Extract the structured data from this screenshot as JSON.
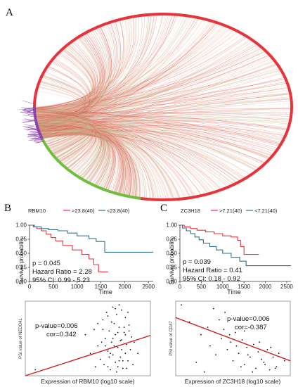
{
  "figure": {
    "panels": {
      "A": {
        "letter": "A"
      },
      "B": {
        "letter": "B",
        "km": {
          "legend_title": "RBM10",
          "legend_high": ">23.8(40)",
          "legend_low": "<23.8(40)",
          "p_text": "p = 0.045",
          "hr_text": "Hazard Ratio = 2.28",
          "ci_text": "95% CI: 0.99 - 5.23",
          "xlabel": "Time",
          "ylabel": "Survival probability"
        },
        "scatter": {
          "xlabel": "Expression of RBM10 (log10 scale)",
          "ylabel": "PSI value of NEDD4L",
          "p_text": "p-value=0.006",
          "cor_text": "cor=0.342"
        }
      },
      "C": {
        "letter": "C",
        "km": {
          "legend_title": "ZC3H18",
          "legend_high": ">7.21(40)",
          "legend_low": "<7.21(40)",
          "p_text": "p = 0.039",
          "hr_text": "Hazard Ratio = 0.41",
          "ci_text": "95% CI: 0.18 - 0.92",
          "xlabel": "Time",
          "ylabel": "Survival probability"
        },
        "scatter": {
          "xlabel": "Expression of ZC3H18 (log10 scale)",
          "ylabel": "PSI value of CD47",
          "p_text": "p-value=0.006",
          "cor_text": "cor=-0.387"
        }
      }
    },
    "colors": {
      "red": "#e8333b",
      "blue": "#2f6e93",
      "green": "#6fbf3f",
      "purple": "#8e44ad",
      "line_red": "#cc1f1f"
    }
  },
  "chart_data": [
    {
      "type": "line",
      "panel": "B",
      "xlabel": "Time",
      "ylabel": "Survival probability",
      "xlim": [
        0,
        2600
      ],
      "ylim": [
        0,
        1
      ],
      "x_ticks": [
        0,
        500,
        1000,
        1500,
        2000,
        2500
      ],
      "y_ticks": [
        0.0,
        0.25,
        0.5,
        0.75,
        1.0
      ],
      "series": [
        {
          "name": ">23.8(40)",
          "color": "#e8333b",
          "x": [
            0,
            80,
            150,
            250,
            350,
            450,
            550,
            700,
            900,
            1100,
            1250,
            1350,
            1450,
            1650
          ],
          "y": [
            1.0,
            0.97,
            0.94,
            0.9,
            0.84,
            0.78,
            0.72,
            0.64,
            0.56,
            0.48,
            0.4,
            0.3,
            0.17,
            0.17
          ]
        },
        {
          "name": "<23.8(40)",
          "color": "#2f6e93",
          "x": [
            0,
            100,
            250,
            400,
            600,
            800,
            1000,
            1250,
            1400,
            1500,
            1580,
            2600
          ],
          "y": [
            1.0,
            0.97,
            0.94,
            0.92,
            0.9,
            0.86,
            0.81,
            0.76,
            0.71,
            0.71,
            0.52,
            0.52
          ]
        }
      ]
    },
    {
      "type": "line",
      "panel": "C",
      "xlabel": "Time",
      "ylabel": "Survival probability",
      "xlim": [
        0,
        2600
      ],
      "ylim": [
        0,
        1
      ],
      "x_ticks": [
        0,
        500,
        1000,
        1500,
        2000,
        2500
      ],
      "y_ticks": [
        0.0,
        0.25,
        0.5,
        0.75,
        1.0
      ],
      "series": [
        {
          "name": ">7.21(40)",
          "color": "#e8333b",
          "x": [
            0,
            100,
            250,
            400,
            600,
            800,
            1000,
            1200,
            1350,
            1420,
            1500,
            1850
          ],
          "y": [
            1.0,
            0.97,
            0.94,
            0.91,
            0.88,
            0.85,
            0.81,
            0.79,
            0.73,
            0.62,
            0.48,
            0.48
          ]
        },
        {
          "name": "<7.21(40)",
          "color": "#2f6e93",
          "x": [
            0,
            60,
            150,
            250,
            350,
            450,
            550,
            700,
            850,
            1000,
            1200,
            1400,
            1550,
            2600
          ],
          "y": [
            1.0,
            0.95,
            0.9,
            0.85,
            0.79,
            0.74,
            0.68,
            0.62,
            0.56,
            0.5,
            0.43,
            0.36,
            0.28,
            0.28
          ]
        }
      ]
    },
    {
      "type": "scatter",
      "panel": "B",
      "xlabel": "Expression of RBM10 (log10 scale)",
      "ylabel": "PSI value of NEDD4L",
      "xlim": [
        0,
        1
      ],
      "ylim": [
        0,
        1
      ],
      "fit": {
        "x": [
          0,
          1
        ],
        "y": [
          0.0,
          0.54
        ]
      },
      "points": {
        "x": [
          0.08,
          0.48,
          0.52,
          0.55,
          0.58,
          0.6,
          0.62,
          0.63,
          0.64,
          0.65,
          0.66,
          0.67,
          0.68,
          0.69,
          0.7,
          0.7,
          0.71,
          0.72,
          0.72,
          0.73,
          0.74,
          0.74,
          0.75,
          0.75,
          0.76,
          0.77,
          0.77,
          0.78,
          0.79,
          0.8,
          0.8,
          0.81,
          0.82,
          0.83,
          0.84,
          0.85,
          0.86,
          0.62,
          0.66,
          0.69,
          0.71,
          0.73,
          0.76,
          0.78,
          0.8,
          0.82,
          0.64,
          0.68,
          0.74,
          0.79,
          0.58,
          0.61,
          0.67,
          0.72,
          0.83,
          0.87,
          0.9,
          0.56,
          0.7,
          0.75,
          0.77,
          0.81,
          0.66
        ],
        "y": [
          0.08,
          0.55,
          0.3,
          0.62,
          0.4,
          0.22,
          0.75,
          0.15,
          0.5,
          0.85,
          0.33,
          0.6,
          0.08,
          0.45,
          0.92,
          0.28,
          0.7,
          0.18,
          0.55,
          0.82,
          0.38,
          0.12,
          0.65,
          0.95,
          0.25,
          0.48,
          0.88,
          0.1,
          0.58,
          0.3,
          0.78,
          0.42,
          0.2,
          0.68,
          0.35,
          0.52,
          0.15,
          0.62,
          0.12,
          0.72,
          0.4,
          0.05,
          0.47,
          0.2,
          0.55,
          0.85,
          0.4,
          0.3,
          0.58,
          0.65,
          0.7,
          0.45,
          0.25,
          0.9,
          0.6,
          0.45,
          0.3,
          0.12,
          0.5,
          0.2,
          0.35,
          0.1,
          0.8
        ]
      }
    },
    {
      "type": "scatter",
      "panel": "C",
      "xlabel": "Expression of ZC3H18 (log10 scale)",
      "ylabel": "PSI value of CD47",
      "xlim": [
        0,
        1
      ],
      "ylim": [
        0,
        1
      ],
      "fit": {
        "x": [
          0,
          1
        ],
        "y": [
          0.78,
          0.2
        ]
      },
      "points": {
        "x": [
          0.05,
          0.12,
          0.18,
          0.22,
          0.28,
          0.3,
          0.35,
          0.38,
          0.4,
          0.42,
          0.45,
          0.48,
          0.5,
          0.52,
          0.55,
          0.58,
          0.6,
          0.62,
          0.65,
          0.68,
          0.7,
          0.72,
          0.75,
          0.78,
          0.8,
          0.82,
          0.85,
          0.88,
          0.9,
          0.95,
          0.25,
          0.33,
          0.47,
          0.53,
          0.57,
          0.63,
          0.67,
          0.73,
          0.77,
          0.83,
          0.87,
          0.6,
          0.43
        ],
        "y": [
          0.95,
          0.72,
          0.18,
          0.55,
          0.65,
          0.4,
          0.28,
          0.75,
          0.5,
          0.62,
          0.35,
          0.45,
          0.2,
          0.58,
          0.3,
          0.48,
          0.15,
          0.38,
          0.25,
          0.42,
          0.1,
          0.32,
          0.22,
          0.15,
          0.35,
          0.08,
          0.25,
          0.12,
          0.3,
          0.2,
          0.05,
          0.9,
          0.55,
          0.4,
          0.12,
          0.28,
          0.05,
          0.45,
          0.18,
          0.38,
          0.1,
          0.6,
          0.85
        ]
      }
    }
  ]
}
